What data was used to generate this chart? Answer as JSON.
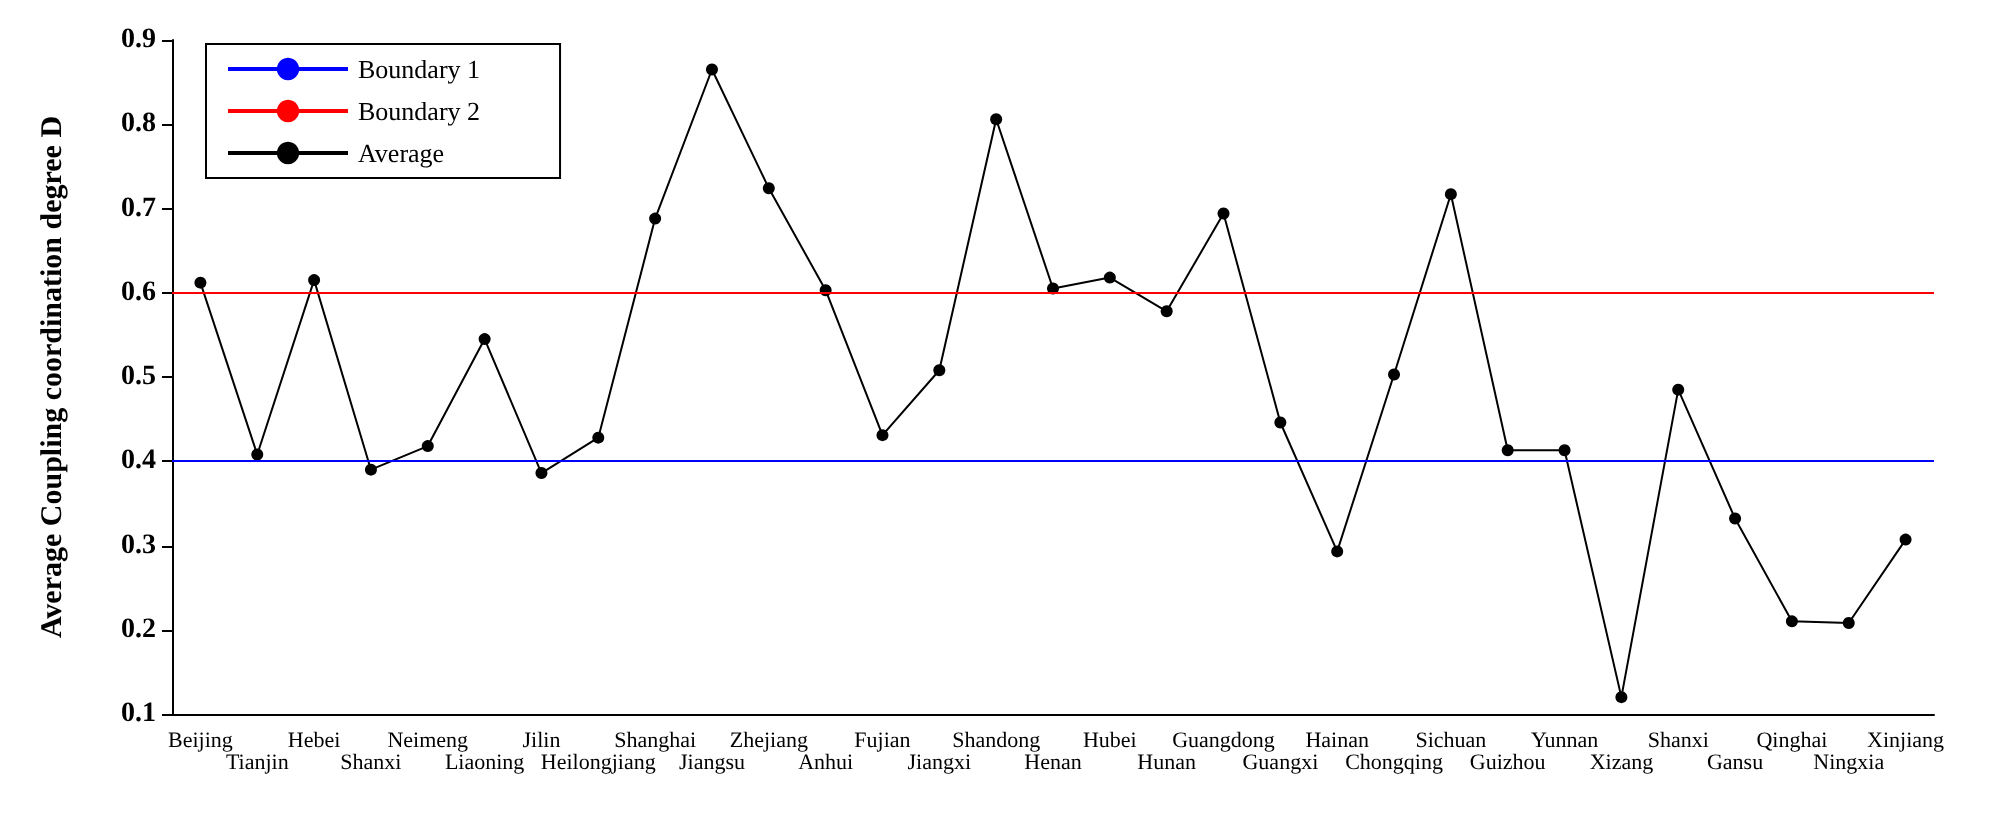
{
  "chart_data": {
    "type": "line",
    "ylabel": "Average Coupling coordination degree D",
    "categories": [
      "Beijing",
      "Tianjin",
      "Hebei",
      "Shanxi",
      "Neimeng",
      "Liaoning",
      "Jilin",
      "Heilongjiang",
      "Shanghai",
      "Jiangsu",
      "Zhejiang",
      "Anhui",
      "Fujian",
      "Jiangxi",
      "Shandong",
      "Henan",
      "Hubei",
      "Hunan",
      "Guangdong",
      "Guangxi",
      "Hainan",
      "Chongqing",
      "Sichuan",
      "Guizhou",
      "Yunnan",
      "Xizang",
      "Shanxi",
      "Gansu",
      "Qinghai",
      "Ningxia",
      "Xinjiang"
    ],
    "series": [
      {
        "name": "Average",
        "color": "#000000",
        "values": [
          0.612,
          0.408,
          0.615,
          0.39,
          0.418,
          0.545,
          0.386,
          0.428,
          0.688,
          0.865,
          0.724,
          0.603,
          0.431,
          0.508,
          0.806,
          0.605,
          0.618,
          0.578,
          0.694,
          0.446,
          0.293,
          0.503,
          0.717,
          0.413,
          0.413,
          0.12,
          0.485,
          0.332,
          0.21,
          0.208,
          0.307
        ]
      }
    ],
    "ref_lines": [
      {
        "axis": "y",
        "value": 0.4,
        "label": "Boundary 1",
        "color": "#0000ff"
      },
      {
        "axis": "y",
        "value": 0.6,
        "label": "Boundary 2",
        "color": "#ff0000"
      }
    ],
    "ylim": [
      0.1,
      0.9
    ],
    "yticks": [
      0.1,
      0.2,
      0.3,
      0.4,
      0.5,
      0.6,
      0.7,
      0.8,
      0.9
    ],
    "grid": false,
    "legend": "top left",
    "marker": "circle",
    "line_style": "solid"
  }
}
